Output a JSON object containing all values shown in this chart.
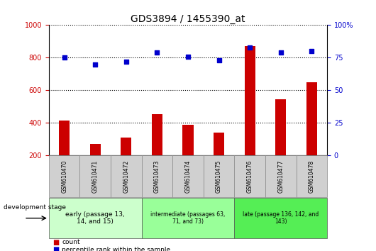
{
  "title": "GDS3894 / 1455390_at",
  "samples": [
    "GSM610470",
    "GSM610471",
    "GSM610472",
    "GSM610473",
    "GSM610474",
    "GSM610475",
    "GSM610476",
    "GSM610477",
    "GSM610478"
  ],
  "count_values": [
    415,
    270,
    310,
    455,
    390,
    340,
    870,
    545,
    650
  ],
  "percentile_values": [
    75,
    70,
    72,
    79,
    76,
    73,
    83,
    79,
    80
  ],
  "count_color": "#cc0000",
  "percentile_color": "#0000cc",
  "left_ylim": [
    200,
    1000
  ],
  "left_yticks": [
    200,
    400,
    600,
    800,
    1000
  ],
  "right_ylim": [
    0,
    100
  ],
  "right_yticks": [
    0,
    25,
    50,
    75,
    100
  ],
  "right_ytick_labels": [
    "0",
    "25",
    "50",
    "75",
    "100%"
  ],
  "stage_groups": [
    {
      "label": "early (passage 13,\n14, and 15)",
      "indices": [
        0,
        1,
        2
      ],
      "color": "#ccffcc"
    },
    {
      "label": "intermediate (passages 63,\n71, and 73)",
      "indices": [
        3,
        4,
        5
      ],
      "color": "#99ff99"
    },
    {
      "label": "late (passage 136, 142, and\n143)",
      "indices": [
        6,
        7,
        8
      ],
      "color": "#55ee55"
    }
  ],
  "legend_count_label": "count",
  "legend_percentile_label": "percentile rank within the sample",
  "development_stage_label": "development stage",
  "bg_color_plot": "#ffffff",
  "xticklabel_bg": "#d0d0d0",
  "dotted_line_color": "#000000",
  "bar_width": 0.35
}
